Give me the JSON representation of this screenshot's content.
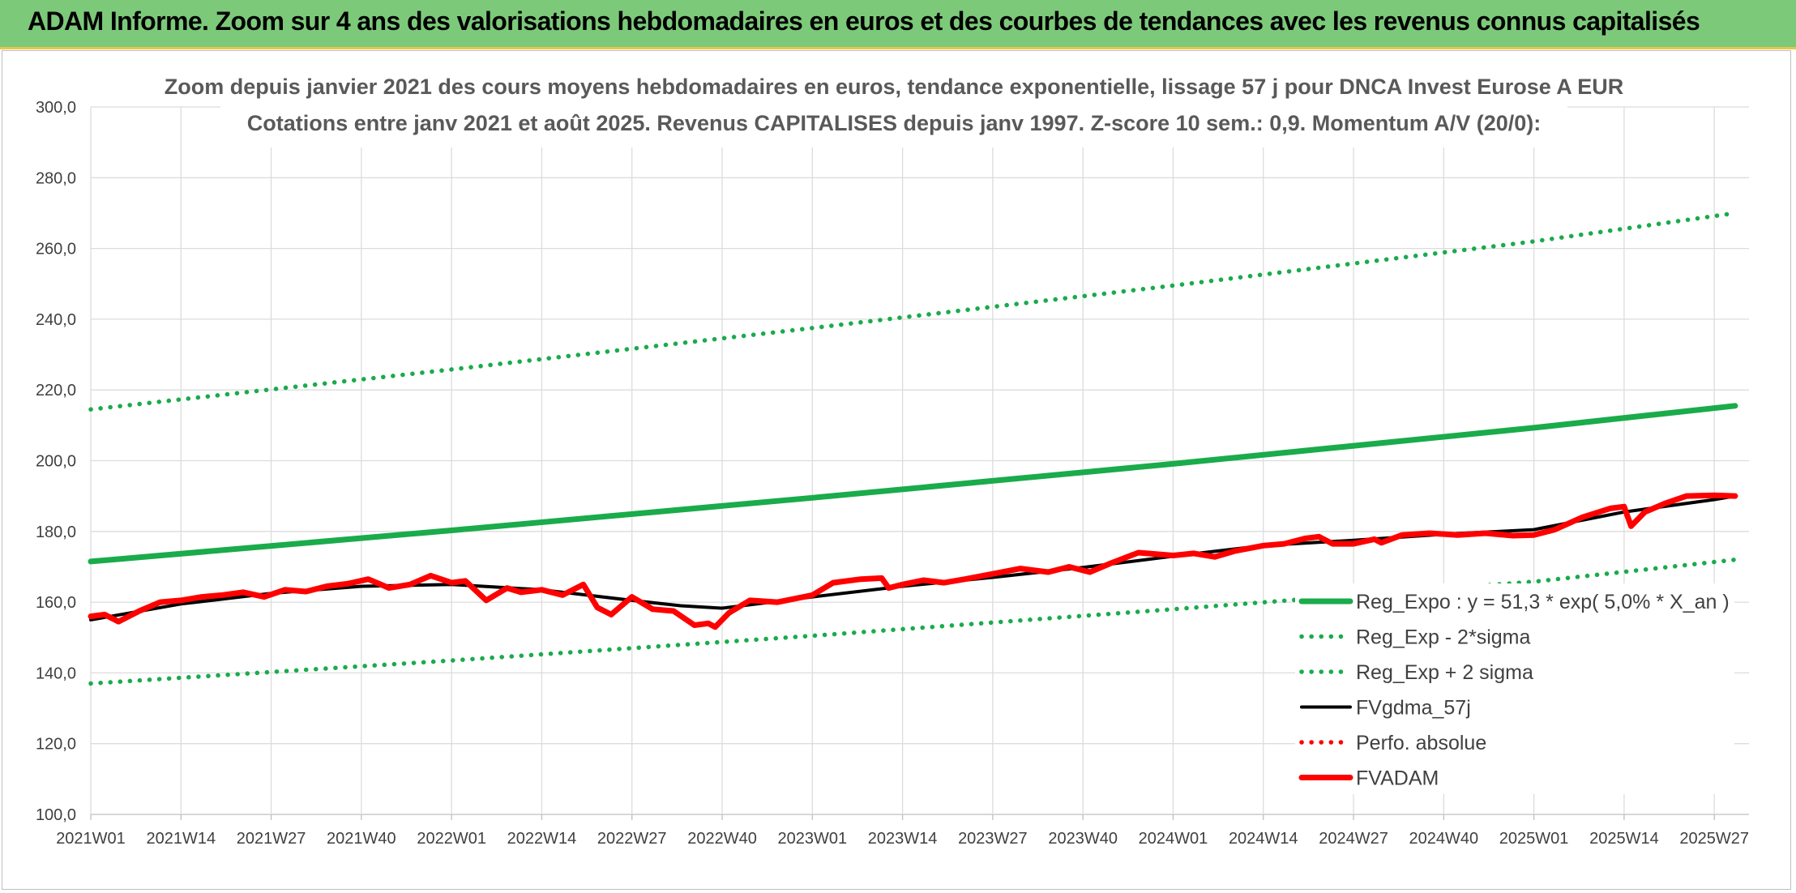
{
  "banner": {
    "title": "ADAM Informe. Zoom sur 4 ans des valorisations hebdomadaires en euros et des courbes de tendances avec les revenus connus capitalisés"
  },
  "colors": {
    "banner": "#7cc97a",
    "trend": "#1aab4b",
    "sigma": "#1aab4b",
    "gdma": "#000000",
    "perfo": "#ff0000",
    "fvadam": "#ff0000"
  },
  "chart_data": {
    "type": "line",
    "title": "Zoom depuis janvier 2021 des cours moyens hebdomadaires en euros, tendance exponentielle, lissage 57 j pour DNCA Invest Eurose A EUR",
    "subtitle": "Cotations entre janv 2021 et août 2025. Revenus CAPITALISES depuis janv 1997. Z-score 10 sem.: 0,9. Momentum A/V (20/0):",
    "xlabel": "",
    "ylabel": "",
    "ylim": [
      100,
      300
    ],
    "yticks": [
      "300,0",
      "280,0",
      "260,0",
      "240,0",
      "220,0",
      "200,0",
      "180,0",
      "160,0",
      "140,0",
      "120,0",
      "100,0"
    ],
    "xticks": [
      "2021W01",
      "2021W14",
      "2021W27",
      "2021W40",
      "2022W01",
      "2022W14",
      "2022W27",
      "2022W40",
      "2023W01",
      "2023W14",
      "2023W27",
      "2023W40",
      "2024W01",
      "2024W14",
      "2024W27",
      "2024W40",
      "2025W01",
      "2025W14",
      "2025W27"
    ],
    "grid": true,
    "legend_position": "right",
    "series": [
      {
        "name": "Reg_Expo : y = 51,3 * exp( 5,0% *  X_an )",
        "style": "solid-thick",
        "color": "#1aab4b",
        "x": [
          "2021W01",
          "2022W01",
          "2023W01",
          "2024W01",
          "2025W01",
          "2025W30"
        ],
        "values": [
          171.5,
          180.3,
          189.5,
          199.1,
          209.3,
          215.5
        ]
      },
      {
        "name": "Reg_Exp - 2*sigma",
        "style": "dotted",
        "color": "#1aab4b",
        "x": [
          "2021W01",
          "2022W01",
          "2023W01",
          "2024W01",
          "2025W01",
          "2025W30"
        ],
        "values": [
          137.0,
          143.5,
          150.5,
          158.0,
          165.8,
          172.0
        ]
      },
      {
        "name": "Reg_Exp + 2 sigma",
        "style": "dotted",
        "color": "#1aab4b",
        "x": [
          "2021W01",
          "2022W01",
          "2023W01",
          "2024W01",
          "2025W01",
          "2025W30"
        ],
        "values": [
          214.5,
          225.8,
          237.5,
          249.5,
          262.0,
          270.0
        ]
      },
      {
        "name": "FVgdma_57j",
        "style": "solid",
        "color": "#000000",
        "x": [
          "2021W01",
          "2021W14",
          "2021W27",
          "2021W40",
          "2022W01",
          "2022W14",
          "2022W27",
          "2022W34",
          "2022W40",
          "2022W45",
          "2023W01",
          "2023W14",
          "2023W27",
          "2023W40",
          "2024W01",
          "2024W14",
          "2024W27",
          "2024W40",
          "2025W01",
          "2025W14",
          "2025W27",
          "2025W30"
        ],
        "values": [
          155.0,
          159.5,
          162.5,
          164.5,
          165.0,
          163.5,
          160.5,
          159.0,
          158.3,
          159.5,
          161.5,
          164.5,
          167.0,
          169.8,
          173.0,
          176.0,
          177.5,
          179.2,
          180.5,
          185.5,
          189.0,
          190.0
        ]
      },
      {
        "name": "Perfo. absolue",
        "style": "dotted",
        "color": "#ff0000",
        "x": [],
        "values": []
      },
      {
        "name": "FVADAM",
        "style": "solid-thick",
        "color": "#ff0000",
        "x": [
          "2021W01",
          "2021W03",
          "2021W05",
          "2021W08",
          "2021W11",
          "2021W14",
          "2021W17",
          "2021W20",
          "2021W23",
          "2021W26",
          "2021W29",
          "2021W32",
          "2021W35",
          "2021W38",
          "2021W41",
          "2021W44",
          "2021W47",
          "2021W50",
          "2022W01",
          "2022W03",
          "2022W06",
          "2022W09",
          "2022W11",
          "2022W14",
          "2022W17",
          "2022W20",
          "2022W22",
          "2022W24",
          "2022W27",
          "2022W30",
          "2022W33",
          "2022W36",
          "2022W38",
          "2022W39",
          "2022W41",
          "2022W44",
          "2022W48",
          "2023W01",
          "2023W04",
          "2023W08",
          "2023W11",
          "2023W12",
          "2023W14",
          "2023W17",
          "2023W20",
          "2023W23",
          "2023W27",
          "2023W31",
          "2023W35",
          "2023W38",
          "2023W41",
          "2023W44",
          "2023W48",
          "2024W01",
          "2024W04",
          "2024W07",
          "2024W10",
          "2024W14",
          "2024W17",
          "2024W20",
          "2024W22",
          "2024W24",
          "2024W27",
          "2024W30",
          "2024W31",
          "2024W34",
          "2024W38",
          "2024W42",
          "2024W46",
          "2024W50",
          "2025W01",
          "2025W04",
          "2025W08",
          "2025W12",
          "2025W14",
          "2025W15",
          "2025W17",
          "2025W20",
          "2025W23",
          "2025W27",
          "2025W30"
        ],
        "values": [
          156.0,
          156.5,
          154.5,
          157.5,
          160.0,
          160.5,
          161.5,
          162.0,
          162.8,
          161.5,
          163.5,
          163.0,
          164.5,
          165.2,
          166.5,
          164.0,
          165.0,
          167.5,
          165.5,
          166.0,
          160.5,
          164.0,
          162.8,
          163.5,
          162.0,
          165.0,
          158.5,
          156.5,
          161.5,
          158.0,
          157.5,
          153.5,
          154.0,
          153.0,
          157.0,
          160.5,
          160.0,
          162.0,
          165.5,
          166.5,
          166.8,
          164.0,
          165.0,
          166.2,
          165.5,
          166.5,
          168.0,
          169.5,
          168.5,
          170.0,
          168.5,
          171.0,
          174.0,
          173.2,
          173.8,
          172.8,
          174.5,
          176.0,
          176.5,
          178.0,
          178.5,
          176.5,
          176.5,
          177.8,
          176.8,
          179.0,
          179.5,
          179.0,
          179.5,
          178.8,
          179.0,
          180.5,
          184.0,
          186.5,
          187.0,
          181.5,
          185.5,
          188.0,
          190.0,
          190.2,
          190.0
        ]
      }
    ]
  }
}
